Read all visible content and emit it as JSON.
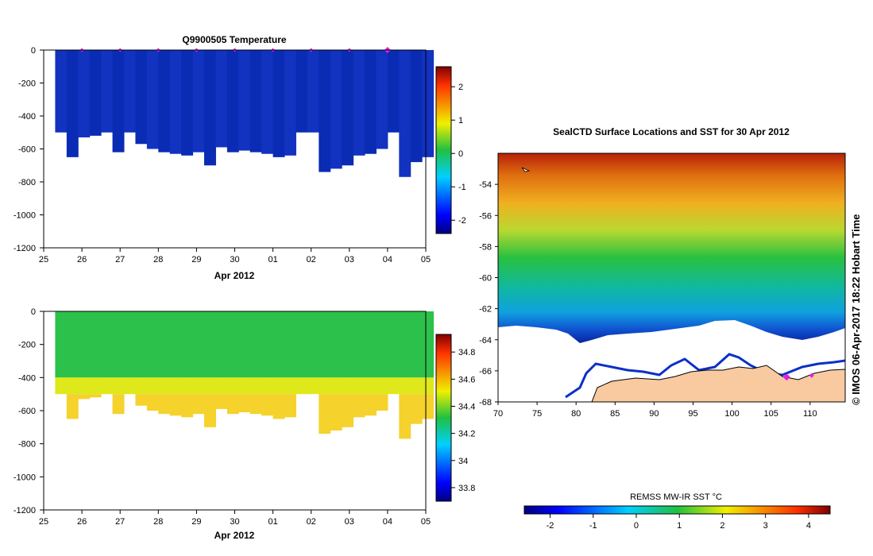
{
  "chart_data": [
    {
      "type": "heatmap",
      "title": "Q9900505  Temperature",
      "xlabel": "Apr 2012",
      "ylabel": "",
      "x_ticks": [
        "25",
        "26",
        "27",
        "28",
        "29",
        "30",
        "01",
        "02",
        "03",
        "04",
        "05"
      ],
      "y_ticks": [
        "0",
        "-200",
        "-400",
        "-600",
        "-800",
        "-1000",
        "-1200"
      ],
      "xlim": [
        25,
        35
      ],
      "ylim": [
        -1200,
        0
      ],
      "profile_markers_day": [
        26,
        27,
        28,
        29,
        30,
        31,
        32,
        33,
        34
      ],
      "latest_profile_day": 34,
      "profile_depths": [
        [
          25.3,
          -500
        ],
        [
          25.6,
          -650
        ],
        [
          25.9,
          -530
        ],
        [
          26.2,
          -520
        ],
        [
          26.5,
          -500
        ],
        [
          26.8,
          -620
        ],
        [
          27.1,
          -500
        ],
        [
          27.4,
          -570
        ],
        [
          27.7,
          -600
        ],
        [
          28.0,
          -620
        ],
        [
          28.3,
          -630
        ],
        [
          28.6,
          -640
        ],
        [
          28.9,
          -620
        ],
        [
          29.2,
          -700
        ],
        [
          29.5,
          -590
        ],
        [
          29.8,
          -620
        ],
        [
          30.1,
          -610
        ],
        [
          30.4,
          -620
        ],
        [
          30.7,
          -630
        ],
        [
          31.0,
          -650
        ],
        [
          31.3,
          -640
        ],
        [
          31.6,
          -500
        ],
        [
          31.9,
          -500
        ],
        [
          32.2,
          -740
        ],
        [
          32.5,
          -720
        ],
        [
          32.8,
          -700
        ],
        [
          33.1,
          -640
        ],
        [
          33.4,
          -630
        ],
        [
          33.7,
          -600
        ],
        [
          34.0,
          -500
        ],
        [
          34.3,
          -770
        ],
        [
          34.6,
          -680
        ],
        [
          34.9,
          -650
        ]
      ],
      "colorbar": {
        "ticks": [
          "2",
          "1",
          "0",
          "-1",
          "-2"
        ],
        "range": [
          -2.4,
          2.6
        ]
      },
      "value_range": [
        -1.9,
        -1.3
      ]
    },
    {
      "type": "heatmap",
      "title": "",
      "xlabel": "Apr 2012",
      "ylabel": "",
      "x_ticks": [
        "25",
        "26",
        "27",
        "28",
        "29",
        "30",
        "01",
        "02",
        "03",
        "04",
        "05"
      ],
      "y_ticks": [
        "0",
        "-200",
        "-400",
        "-600",
        "-800",
        "-1000",
        "-1200"
      ],
      "xlim": [
        25,
        35
      ],
      "ylim": [
        -1200,
        0
      ],
      "colorbar": {
        "ticks": [
          "34.8",
          "34.6",
          "34.4",
          "34.2",
          "34",
          "33.8"
        ],
        "range": [
          33.7,
          34.93
        ]
      },
      "salinity_layers": [
        {
          "top": 0,
          "bottom": -400,
          "value": 34.33
        },
        {
          "top": -400,
          "bottom": -500,
          "value": 34.5
        },
        {
          "top": -500,
          "bottom": -800,
          "value": 34.62
        }
      ]
    },
    {
      "type": "heatmap",
      "title": "SealCTD Surface Locations and SST for 30 Apr 2012",
      "xlabel": "",
      "ylabel": "",
      "x_ticks": [
        "70",
        "75",
        "80",
        "85",
        "90",
        "95",
        "100",
        "105",
        "110"
      ],
      "y_ticks": [
        "-54",
        "-56",
        "-58",
        "-60",
        "-62",
        "-64",
        "-66",
        "-68"
      ],
      "xlim": [
        70,
        114.5
      ],
      "ylim": [
        -68,
        -52
      ],
      "sst_bands": [
        {
          "lat_north": -52,
          "lat_south": -53.6,
          "sst": 3.6
        },
        {
          "lat_north": -53.6,
          "lat_south": -56.4,
          "sst": 2.2
        },
        {
          "lat_north": -56.4,
          "lat_south": -58.8,
          "sst": 0.9
        },
        {
          "lat_north": -58.8,
          "lat_south": -60.6,
          "sst": 0.2
        },
        {
          "lat_north": -60.6,
          "lat_south": -62.2,
          "sst": -0.8
        },
        {
          "lat_north": -62.2,
          "lat_south": -63.6,
          "sst": -1.6
        }
      ],
      "colorbar": {
        "label": "REMSS MW-IR SST °C",
        "ticks": [
          "-2",
          "-1",
          "0",
          "1",
          "2",
          "3",
          "4"
        ],
        "range": [
          -2.6,
          4.5
        ]
      },
      "seal_locations": [
        [
          107.0,
          -66.4
        ],
        [
          110.2,
          -66.3
        ]
      ],
      "credit": "©  IMOS 06-Apr-2017 18:22 Hobart Time"
    }
  ],
  "colors": {
    "temperature_fill": "#0a2bb4",
    "temperature_fill_alt": "#1232c0",
    "marker": "#e020e0",
    "land": "#f9c9a0",
    "ice": "#ffffff"
  }
}
